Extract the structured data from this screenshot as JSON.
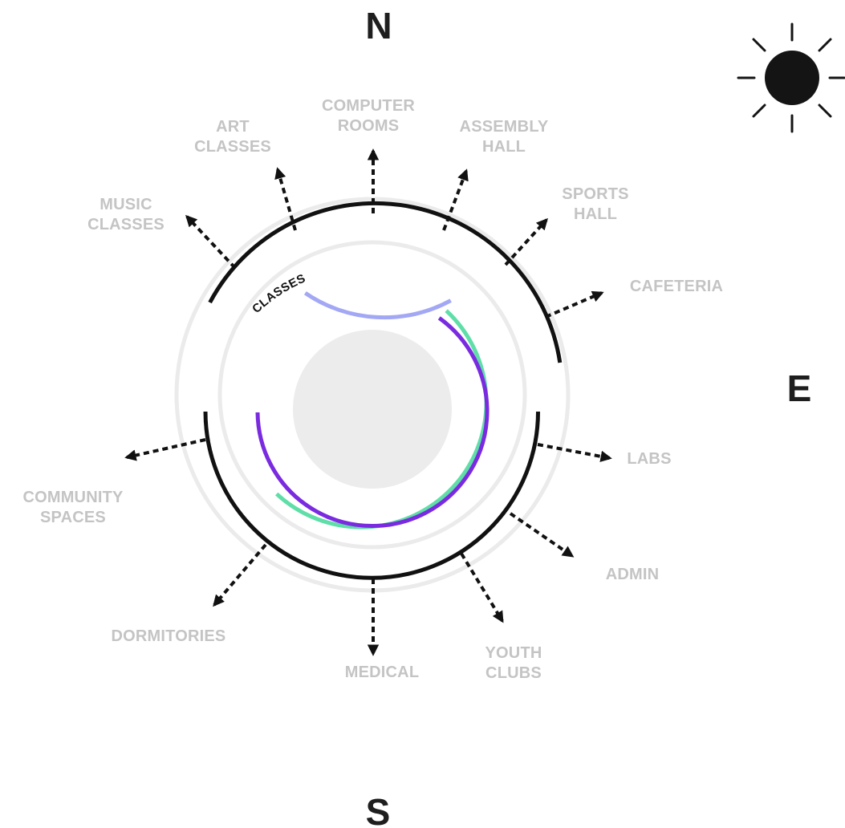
{
  "compass": {
    "north": "N",
    "east": "E",
    "south": "S"
  },
  "icons": {
    "sun": "sun-icon"
  },
  "arc_label": "CLASSES",
  "zones": [
    {
      "id": "computer-rooms",
      "lines": [
        "COMPUTER",
        "ROOMS"
      ]
    },
    {
      "id": "art-classes",
      "lines": [
        "ART",
        "CLASSES"
      ]
    },
    {
      "id": "assembly-hall",
      "lines": [
        "ASSEMBLY",
        "HALL"
      ]
    },
    {
      "id": "music-classes",
      "lines": [
        "MUSIC",
        "CLASSES"
      ]
    },
    {
      "id": "sports-hall",
      "lines": [
        "SPORTS",
        "HALL"
      ]
    },
    {
      "id": "cafeteria",
      "lines": [
        "CAFETERIA"
      ]
    },
    {
      "id": "labs",
      "lines": [
        "LABS"
      ]
    },
    {
      "id": "admin",
      "lines": [
        "ADMIN"
      ]
    },
    {
      "id": "community-spaces",
      "lines": [
        "COMMUNITY",
        "SPACES"
      ]
    },
    {
      "id": "dormitories",
      "lines": [
        "DORMITORIES"
      ]
    },
    {
      "id": "medical",
      "lines": [
        "MEDICAL"
      ]
    },
    {
      "id": "youth-clubs",
      "lines": [
        "YOUTH",
        "CLUBS"
      ]
    }
  ],
  "colors": {
    "outer_ring": "#111111",
    "faint_ring": "#ebebeb",
    "center_disc": "#ececec",
    "arc_lavender": "#a3a8f5",
    "arc_green": "#5fdea8",
    "arc_purple": "#7a2be0",
    "label_gray": "#c4c4c4",
    "arrow": "#111111"
  }
}
